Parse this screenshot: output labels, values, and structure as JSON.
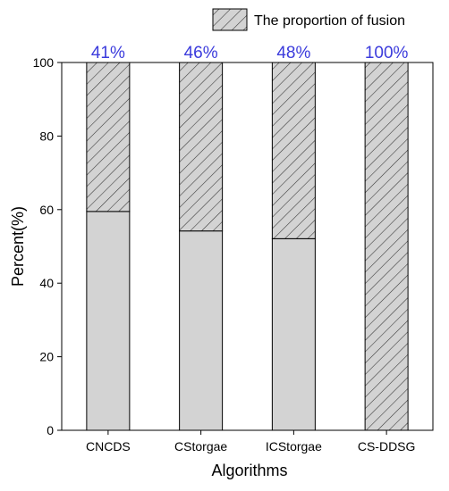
{
  "chart_data": {
    "type": "bar",
    "stacked": true,
    "categories": [
      "CNCDS",
      "CStorgae",
      "ICStorgae",
      "CS-DDSG"
    ],
    "series": [
      {
        "values": [
          59.5,
          54.2,
          52.1,
          0
        ],
        "fill": "#d3d3d3",
        "pattern": "none"
      },
      {
        "name": "The proportion of fusion",
        "values": [
          40.5,
          45.8,
          47.9,
          100
        ],
        "fill": "#d3d3d3",
        "pattern": "hatch"
      }
    ],
    "data_labels": [
      "41%",
      "46%",
      "48%",
      "100%"
    ],
    "data_label_color": "#3b3bdc",
    "xlabel": "Algorithms",
    "ylabel": "Percent(%)",
    "ylim": [
      0,
      100
    ],
    "yticks": [
      0,
      20,
      40,
      60,
      80,
      100
    ],
    "grid": false,
    "legend_position": "top-right"
  }
}
